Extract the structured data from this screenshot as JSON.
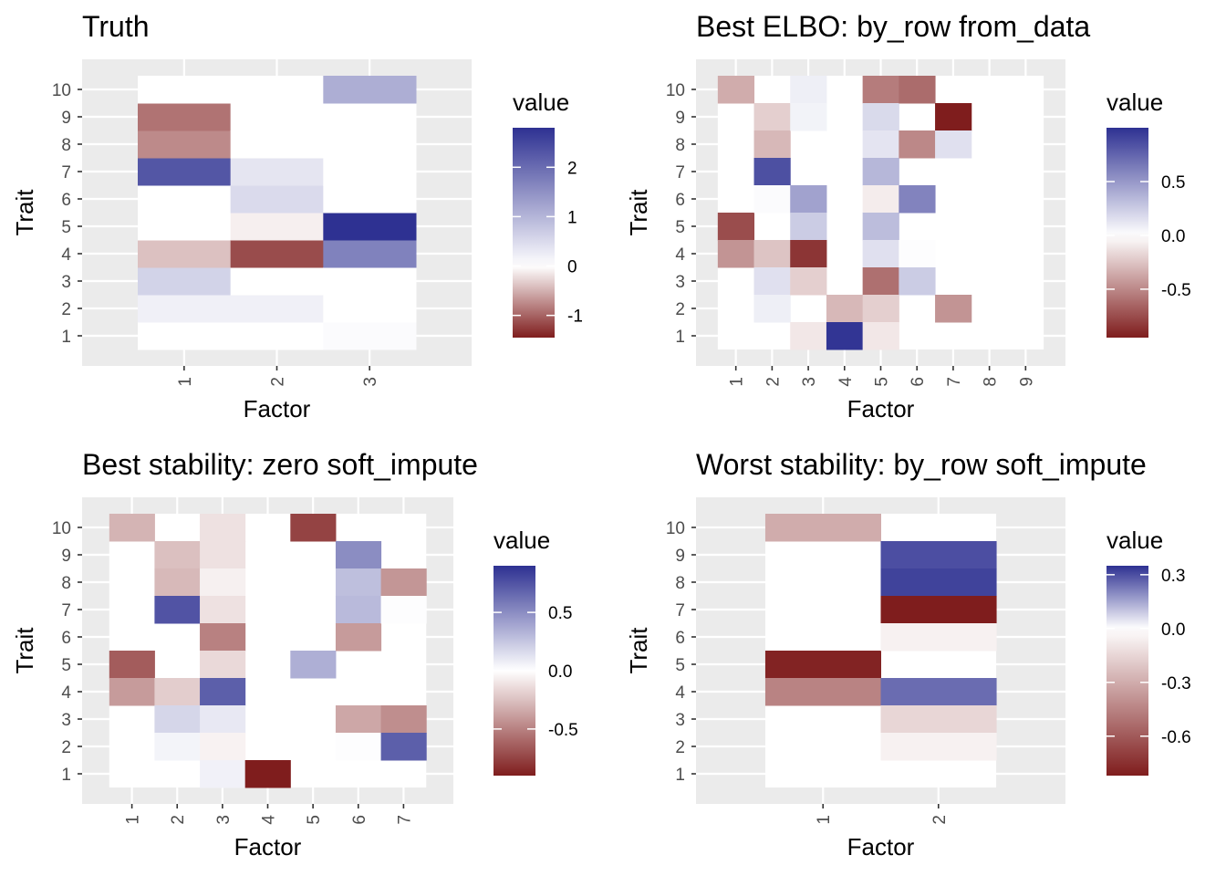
{
  "chart_data": [
    {
      "type": "heatmap",
      "title": "Truth",
      "xlabel": "Factor",
      "ylabel": "Trait",
      "x_categories": [
        "1",
        "2",
        "3"
      ],
      "y_categories": [
        "1",
        "2",
        "3",
        "4",
        "5",
        "6",
        "7",
        "8",
        "9",
        "10"
      ],
      "cells": [
        {
          "x": "1",
          "y": "1",
          "value": 0
        },
        {
          "x": "1",
          "y": "2",
          "value": 0.2
        },
        {
          "x": "1",
          "y": "3",
          "value": 0.6
        },
        {
          "x": "1",
          "y": "4",
          "value": -0.4
        },
        {
          "x": "1",
          "y": "5",
          "value": 0
        },
        {
          "x": "1",
          "y": "6",
          "value": 0
        },
        {
          "x": "1",
          "y": "7",
          "value": 2.3
        },
        {
          "x": "1",
          "y": "8",
          "value": -0.75
        },
        {
          "x": "1",
          "y": "9",
          "value": -0.9
        },
        {
          "x": "1",
          "y": "10",
          "value": 0
        },
        {
          "x": "2",
          "y": "1",
          "value": 0
        },
        {
          "x": "2",
          "y": "2",
          "value": 0.2
        },
        {
          "x": "2",
          "y": "3",
          "value": 0
        },
        {
          "x": "2",
          "y": "4",
          "value": -1.15
        },
        {
          "x": "2",
          "y": "5",
          "value": -0.1
        },
        {
          "x": "2",
          "y": "6",
          "value": 0.5
        },
        {
          "x": "2",
          "y": "7",
          "value": 0.35
        },
        {
          "x": "2",
          "y": "8",
          "value": 0
        },
        {
          "x": "2",
          "y": "9",
          "value": 0
        },
        {
          "x": "2",
          "y": "10",
          "value": 0
        },
        {
          "x": "3",
          "y": "1",
          "value": 0.05
        },
        {
          "x": "3",
          "y": "2",
          "value": 0
        },
        {
          "x": "3",
          "y": "3",
          "value": 0
        },
        {
          "x": "3",
          "y": "4",
          "value": 1.7
        },
        {
          "x": "3",
          "y": "5",
          "value": 2.8
        },
        {
          "x": "3",
          "y": "6",
          "value": 0
        },
        {
          "x": "3",
          "y": "7",
          "value": 0
        },
        {
          "x": "3",
          "y": "8",
          "value": 0
        },
        {
          "x": "3",
          "y": "9",
          "value": 0
        },
        {
          "x": "3",
          "y": "10",
          "value": 1.1
        }
      ],
      "legend": {
        "title": "value",
        "min": -1.45,
        "max": 2.8,
        "breaks": [
          2,
          1,
          0,
          -1
        ],
        "break_labels": [
          "2",
          "1",
          "0",
          "-1"
        ]
      }
    },
    {
      "type": "heatmap",
      "title": "Best ELBO: by_row from_data",
      "xlabel": "Factor",
      "ylabel": "Trait",
      "x_categories": [
        "1",
        "2",
        "3",
        "4",
        "5",
        "6",
        "7",
        "8",
        "9"
      ],
      "y_categories": [
        "1",
        "2",
        "3",
        "4",
        "5",
        "6",
        "7",
        "8",
        "9",
        "10"
      ],
      "cells": [
        {
          "x": "1",
          "y": "10",
          "value": -0.35
        },
        {
          "x": "1",
          "y": "5",
          "value": -0.75
        },
        {
          "x": "1",
          "y": "4",
          "value": -0.45
        },
        {
          "x": "2",
          "y": "9",
          "value": -0.2
        },
        {
          "x": "2",
          "y": "8",
          "value": -0.3
        },
        {
          "x": "2",
          "y": "7",
          "value": 0.85
        },
        {
          "x": "2",
          "y": "6",
          "value": 0.02
        },
        {
          "x": "2",
          "y": "4",
          "value": -0.25
        },
        {
          "x": "2",
          "y": "3",
          "value": 0.15
        },
        {
          "x": "2",
          "y": "2",
          "value": 0.08
        },
        {
          "x": "3",
          "y": "10",
          "value": 0.08
        },
        {
          "x": "3",
          "y": "9",
          "value": 0.06
        },
        {
          "x": "3",
          "y": "6",
          "value": 0.45
        },
        {
          "x": "3",
          "y": "5",
          "value": 0.25
        },
        {
          "x": "3",
          "y": "4",
          "value": -0.85
        },
        {
          "x": "3",
          "y": "3",
          "value": -0.2
        },
        {
          "x": "3",
          "y": "1",
          "value": -0.1
        },
        {
          "x": "4",
          "y": "2",
          "value": -0.3
        },
        {
          "x": "4",
          "y": "1",
          "value": 0.98
        },
        {
          "x": "5",
          "y": "10",
          "value": -0.55
        },
        {
          "x": "5",
          "y": "9",
          "value": 0.18
        },
        {
          "x": "5",
          "y": "8",
          "value": 0.13
        },
        {
          "x": "5",
          "y": "7",
          "value": 0.35
        },
        {
          "x": "5",
          "y": "6",
          "value": -0.08
        },
        {
          "x": "5",
          "y": "5",
          "value": 0.32
        },
        {
          "x": "5",
          "y": "4",
          "value": 0.15
        },
        {
          "x": "5",
          "y": "3",
          "value": -0.6
        },
        {
          "x": "5",
          "y": "2",
          "value": -0.2
        },
        {
          "x": "5",
          "y": "1",
          "value": -0.1
        },
        {
          "x": "6",
          "y": "10",
          "value": -0.62
        },
        {
          "x": "6",
          "y": "8",
          "value": -0.5
        },
        {
          "x": "6",
          "y": "6",
          "value": 0.6
        },
        {
          "x": "6",
          "y": "4",
          "value": 0.01
        },
        {
          "x": "6",
          "y": "3",
          "value": 0.25
        },
        {
          "x": "7",
          "y": "9",
          "value": -0.95
        },
        {
          "x": "7",
          "y": "8",
          "value": 0.15
        },
        {
          "x": "7",
          "y": "2",
          "value": -0.45
        }
      ],
      "legend": {
        "title": "value",
        "min": -0.95,
        "max": 1.0,
        "breaks": [
          0.5,
          0.0,
          -0.5
        ],
        "break_labels": [
          "0.5",
          "0.0",
          "-0.5"
        ]
      }
    },
    {
      "type": "heatmap",
      "title": "Best stability: zero soft_impute",
      "xlabel": "Factor",
      "ylabel": "Trait",
      "x_categories": [
        "1",
        "2",
        "3",
        "4",
        "5",
        "6",
        "7"
      ],
      "y_categories": [
        "1",
        "2",
        "3",
        "4",
        "5",
        "6",
        "7",
        "8",
        "9",
        "10"
      ],
      "cells": [
        {
          "x": "1",
          "y": "10",
          "value": -0.3
        },
        {
          "x": "1",
          "y": "5",
          "value": -0.65
        },
        {
          "x": "1",
          "y": "4",
          "value": -0.4
        },
        {
          "x": "2",
          "y": "9",
          "value": -0.25
        },
        {
          "x": "2",
          "y": "8",
          "value": -0.28
        },
        {
          "x": "2",
          "y": "7",
          "value": 0.75
        },
        {
          "x": "2",
          "y": "4",
          "value": -0.2
        },
        {
          "x": "2",
          "y": "3",
          "value": 0.18
        },
        {
          "x": "2",
          "y": "2",
          "value": 0.05
        },
        {
          "x": "3",
          "y": "10",
          "value": -0.12
        },
        {
          "x": "3",
          "y": "9",
          "value": -0.12
        },
        {
          "x": "3",
          "y": "8",
          "value": -0.06
        },
        {
          "x": "3",
          "y": "7",
          "value": -0.12
        },
        {
          "x": "3",
          "y": "6",
          "value": -0.5
        },
        {
          "x": "3",
          "y": "5",
          "value": -0.15
        },
        {
          "x": "3",
          "y": "4",
          "value": 0.7
        },
        {
          "x": "3",
          "y": "3",
          "value": 0.1
        },
        {
          "x": "3",
          "y": "2",
          "value": -0.05
        },
        {
          "x": "3",
          "y": "1",
          "value": 0.06
        },
        {
          "x": "4",
          "y": "1",
          "value": -0.9
        },
        {
          "x": "5",
          "y": "10",
          "value": -0.75
        },
        {
          "x": "5",
          "y": "5",
          "value": 0.35
        },
        {
          "x": "6",
          "y": "9",
          "value": 0.5
        },
        {
          "x": "6",
          "y": "8",
          "value": 0.28
        },
        {
          "x": "6",
          "y": "7",
          "value": 0.3
        },
        {
          "x": "6",
          "y": "6",
          "value": -0.4
        },
        {
          "x": "6",
          "y": "3",
          "value": -0.35
        },
        {
          "x": "6",
          "y": "2",
          "value": 0.01
        },
        {
          "x": "7",
          "y": "8",
          "value": -0.42
        },
        {
          "x": "7",
          "y": "7",
          "value": 0.01
        },
        {
          "x": "7",
          "y": "3",
          "value": -0.45
        },
        {
          "x": "7",
          "y": "2",
          "value": 0.7
        }
      ],
      "legend": {
        "title": "value",
        "min": -0.9,
        "max": 0.9,
        "breaks": [
          0.5,
          0.0,
          -0.5
        ],
        "break_labels": [
          "0.5",
          "0.0",
          "-0.5"
        ]
      }
    },
    {
      "type": "heatmap",
      "title": "Worst stability: by_row soft_impute",
      "xlabel": "Factor",
      "ylabel": "Trait",
      "x_categories": [
        "1",
        "2"
      ],
      "y_categories": [
        "1",
        "2",
        "3",
        "4",
        "5",
        "6",
        "7",
        "8",
        "9",
        "10"
      ],
      "cells": [
        {
          "x": "1",
          "y": "10",
          "value": -0.3
        },
        {
          "x": "1",
          "y": "5",
          "value": -0.8
        },
        {
          "x": "1",
          "y": "4",
          "value": -0.45
        },
        {
          "x": "2",
          "y": "9",
          "value": 0.3
        },
        {
          "x": "2",
          "y": "8",
          "value": 0.32
        },
        {
          "x": "2",
          "y": "7",
          "value": -0.82
        },
        {
          "x": "2",
          "y": "6",
          "value": -0.05
        },
        {
          "x": "2",
          "y": "4",
          "value": 0.25
        },
        {
          "x": "2",
          "y": "3",
          "value": -0.15
        },
        {
          "x": "2",
          "y": "2",
          "value": -0.05
        }
      ],
      "legend": {
        "title": "value",
        "min": -0.82,
        "max": 0.35,
        "breaks": [
          0.3,
          0.0,
          -0.3,
          -0.6
        ],
        "break_labels": [
          "0.3",
          "0.0",
          "-0.3",
          "-0.6"
        ]
      }
    }
  ],
  "colors": {
    "high": "#2e3192",
    "mid": "#ffffff",
    "low": "#7f1d1d",
    "panel_background": "#ebebeb",
    "gridline": "#ffffff",
    "tick": "#333333"
  }
}
